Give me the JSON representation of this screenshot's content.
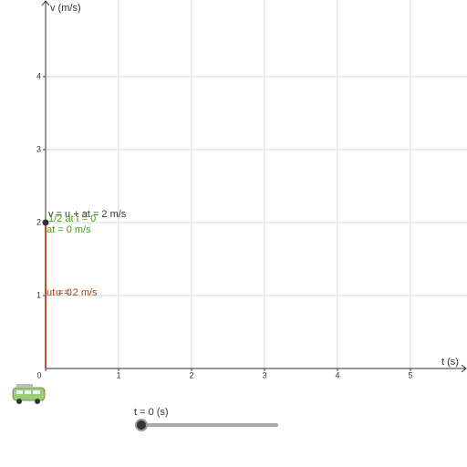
{
  "chart_data": {
    "type": "motion",
    "x_label": "t (s)",
    "y_label": "v (m/s)",
    "xlim": [
      0,
      5.775
    ],
    "ylim": [
      0,
      5.05
    ],
    "xticks": [
      0,
      1,
      2,
      3,
      4,
      5
    ],
    "yticks": [
      1,
      2,
      3,
      4
    ],
    "grid": true,
    "point": {
      "x": 0,
      "y": 2,
      "color": "#333333"
    },
    "segment": {
      "x": [
        0,
        0
      ],
      "y": [
        0,
        2
      ],
      "color": "#b5532a"
    },
    "annotations": [
      {
        "text": "v = u + at = 2 m/s",
        "color": "#333333"
      },
      {
        "text": "1/2 at t = 0",
        "color": "#4a9a1a"
      },
      {
        "text": "at = 0 m/s",
        "color": "#4a9a1a"
      },
      {
        "text": "ut = 0",
        "color": "#a0451e"
      },
      {
        "text": "u = 2 m/s",
        "color": "#a0451e"
      }
    ],
    "slider": {
      "label": "t = 0 (s)",
      "value": 0
    }
  }
}
